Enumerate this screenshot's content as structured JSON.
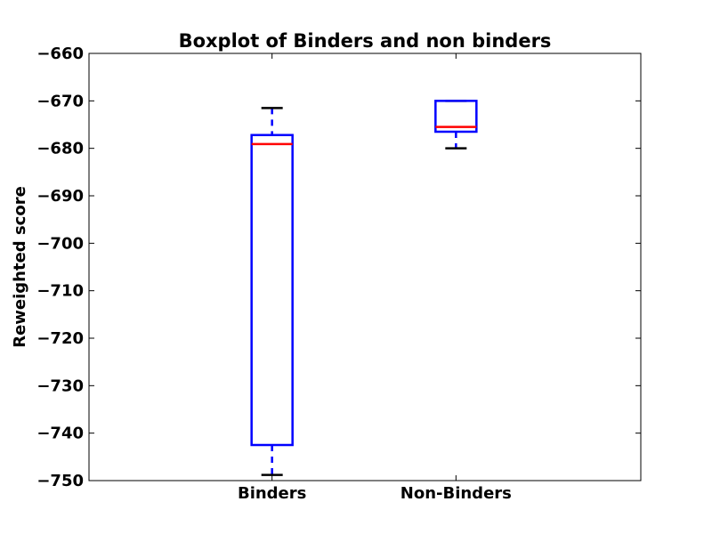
{
  "chart_data": {
    "type": "boxplot",
    "title": "Boxplot of Binders and non binders",
    "xlabel": "",
    "ylabel": "Reweighted score",
    "ylim": [
      -750,
      -660
    ],
    "yticks": [
      -660,
      -670,
      -680,
      -690,
      -700,
      -710,
      -720,
      -730,
      -740,
      -750
    ],
    "ytick_labels": [
      "−660",
      "−670",
      "−680",
      "−690",
      "−700",
      "−710",
      "−720",
      "−730",
      "−740",
      "−750"
    ],
    "categories": [
      "Binders",
      "Non-Binders"
    ],
    "boxes": [
      {
        "category": "Binders",
        "whisker_high": -671.5,
        "q3": -677.2,
        "median": -679.1,
        "q1": -742.5,
        "whisker_low": -748.8
      },
      {
        "category": "Non-Binders",
        "whisker_high": -670.0,
        "q3": -670.0,
        "median": -675.5,
        "q1": -676.5,
        "whisker_low": -680.0
      }
    ],
    "grid": false,
    "colors": {
      "box": "#0000ff",
      "median": "#ff0000",
      "cap": "#000000",
      "whisker": "#0000ff"
    }
  }
}
